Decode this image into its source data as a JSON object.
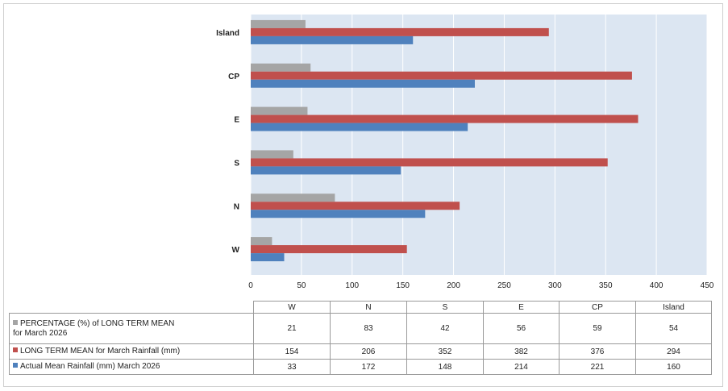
{
  "chart_data": {
    "type": "bar",
    "orientation": "horizontal",
    "categories": [
      "W",
      "N",
      "S",
      "E",
      "CP",
      "Island"
    ],
    "series": [
      {
        "name": "PERCENTAGE (%) of LONG TERM MEAN\nfor March 2026",
        "color": "#a5a5a5",
        "values": [
          21,
          83,
          42,
          56,
          59,
          54
        ]
      },
      {
        "name": "LONG TERM MEAN  for  March  Rainfall (mm)",
        "color": "#c0504d",
        "values": [
          154,
          206,
          352,
          382,
          376,
          294
        ]
      },
      {
        "name": "Actual Mean Rainfall (mm) March 2026",
        "color": "#4f81bd",
        "values": [
          33,
          172,
          148,
          214,
          221,
          160
        ]
      }
    ],
    "xlim": [
      0,
      450
    ],
    "xticks": [
      "0",
      "50",
      "100",
      "150",
      "200",
      "250",
      "300",
      "350",
      "400",
      "450"
    ],
    "grid": true,
    "plot_background": "#dce6f2",
    "legend": "data-table-below",
    "title": "",
    "xlabel": "",
    "ylabel": ""
  },
  "table": {
    "columns": [
      "W",
      "N",
      "S",
      "E",
      "CP",
      "Island"
    ],
    "rows": [
      {
        "label": "PERCENTAGE (%) of LONG TERM MEAN\nfor March 2026",
        "key_color": "#a5a5a5",
        "values": [
          "21",
          "83",
          "42",
          "56",
          "59",
          "54"
        ]
      },
      {
        "label": "LONG TERM MEAN  for  March  Rainfall (mm)",
        "key_color": "#c0504d",
        "values": [
          "154",
          "206",
          "352",
          "382",
          "376",
          "294"
        ]
      },
      {
        "label": "Actual Mean Rainfall (mm) March 2026",
        "key_color": "#4f81bd",
        "values": [
          "33",
          "172",
          "148",
          "214",
          "221",
          "160"
        ]
      }
    ]
  }
}
